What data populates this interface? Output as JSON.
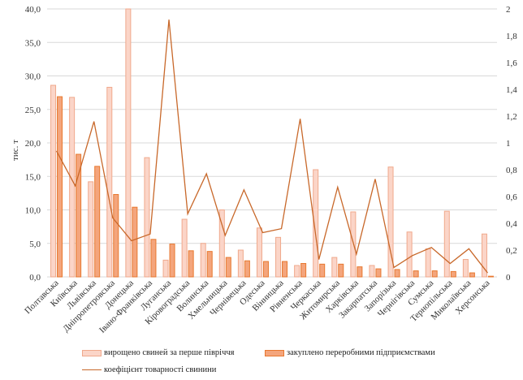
{
  "chart_data": {
    "type": "bar",
    "title": "",
    "ylabel": "тис. т",
    "ylim": [
      0,
      40
    ],
    "y_ticks": [
      "0,0",
      "5,0",
      "10,0",
      "15,0",
      "20,0",
      "25,0",
      "30,0",
      "35,0",
      "40,0"
    ],
    "y2lim": [
      0,
      2
    ],
    "y2_ticks": [
      "0",
      "0,2",
      "0,4",
      "0,6",
      "0,8",
      "1",
      "1,2",
      "1,4",
      "1,6",
      "1,8",
      "2"
    ],
    "grid": true,
    "legend_position": "bottom",
    "categories": [
      "Полтавська",
      "Київська",
      "Львівська",
      "Дніпропетровська",
      "Донецька",
      "Івано-Франківська",
      "Луганська",
      "Кіровоградська",
      "Волинська",
      "Хмельницька",
      "Чернівецька",
      "Одеська",
      "Вінницька",
      "Рівненська",
      "Черкаська",
      "Житомирська",
      "Харківська",
      "Закарпатська",
      "Запорізька",
      "Чернігівська",
      "Сумська",
      "Тернопільська",
      "Миколаївська",
      "Херсонська"
    ],
    "series": [
      {
        "name": "вирощено свиней за перше півріччя",
        "type": "bar",
        "axis": "left",
        "color": "#fbd5c8",
        "stroke": "#f0a98c",
        "values": [
          28.6,
          26.8,
          14.2,
          28.3,
          40.0,
          17.8,
          2.5,
          8.6,
          5.0,
          10.0,
          4.0,
          7.3,
          5.9,
          1.7,
          16.0,
          2.9,
          9.7,
          1.7,
          16.4,
          6.7,
          4.2,
          9.8,
          2.6,
          6.4
        ]
      },
      {
        "name": "закуплено переробними підприємствами",
        "type": "bar",
        "axis": "left",
        "color": "#f4a57c",
        "stroke": "#e8782f",
        "values": [
          26.9,
          18.3,
          16.5,
          12.3,
          10.4,
          5.6,
          4.9,
          3.9,
          3.8,
          2.9,
          2.4,
          2.3,
          2.3,
          2.0,
          1.9,
          1.9,
          1.5,
          1.2,
          1.1,
          0.9,
          0.9,
          0.8,
          0.6,
          0.1
        ]
      },
      {
        "name": "коефіцієнт товарності свинини",
        "type": "line",
        "axis": "right",
        "color": "#c8682a",
        "values": [
          0.94,
          0.68,
          1.16,
          0.44,
          0.27,
          0.32,
          1.92,
          0.47,
          0.77,
          0.31,
          0.65,
          0.33,
          0.36,
          1.18,
          0.13,
          0.67,
          0.17,
          0.73,
          0.07,
          0.16,
          0.22,
          0.1,
          0.21,
          0.03
        ]
      }
    ]
  }
}
